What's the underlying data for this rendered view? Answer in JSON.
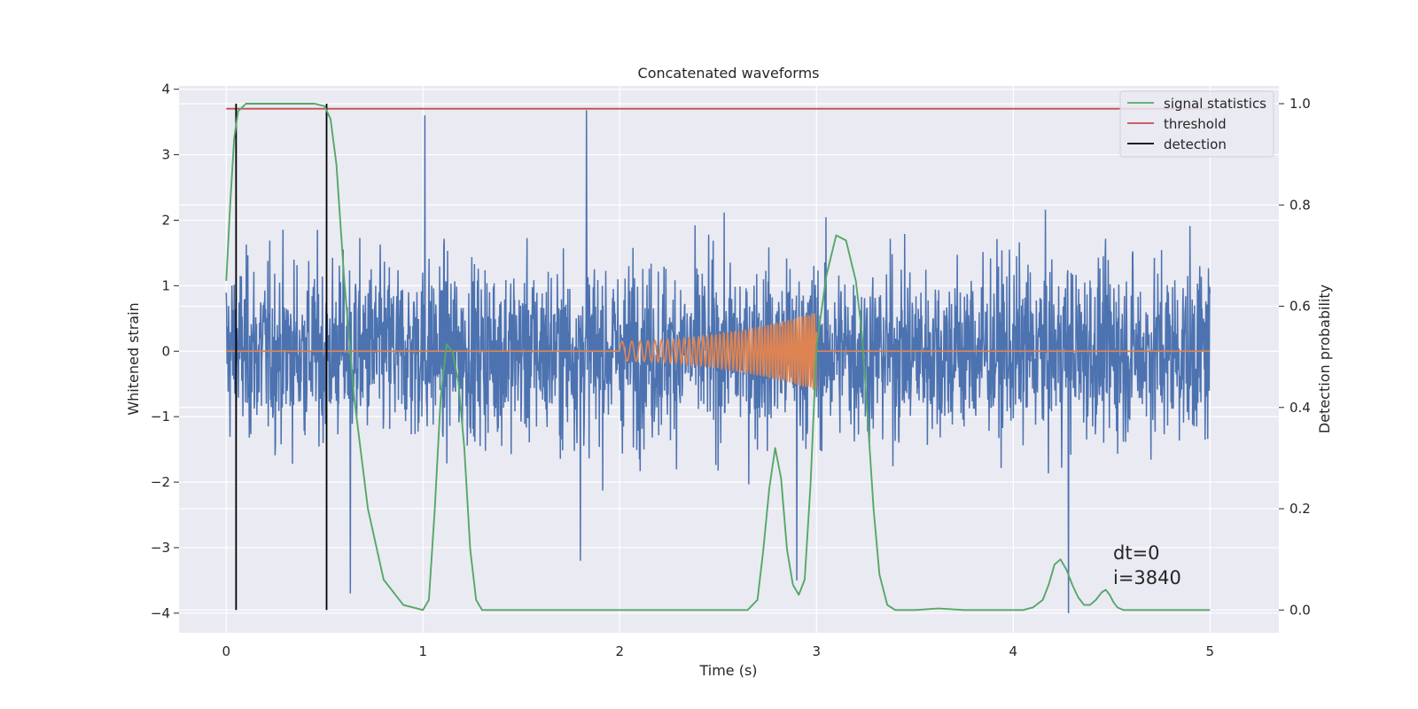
{
  "chart_data": {
    "type": "line",
    "title": "Concatenated waveforms",
    "xlabel": "Time (s)",
    "ylabel_left": "Whitened strain",
    "ylabel_right": "Detection probability",
    "xlim": [
      -0.24,
      5.35
    ],
    "ylim_left": [
      -4.3,
      4.05
    ],
    "ylim_right": [
      -0.045,
      1.035
    ],
    "x_ticks": [
      0,
      1,
      2,
      3,
      4,
      5
    ],
    "x_tick_labels": [
      "0",
      "1",
      "2",
      "3",
      "4",
      "5"
    ],
    "y_left_ticks": [
      -4,
      -3,
      -2,
      -1,
      0,
      1,
      2,
      3,
      4
    ],
    "y_left_tick_labels": [
      "−4",
      "−3",
      "−2",
      "−1",
      "0",
      "1",
      "2",
      "3",
      "4"
    ],
    "y_right_ticks": [
      0.0,
      0.2,
      0.4,
      0.6,
      0.8,
      1.0
    ],
    "y_right_tick_labels": [
      "0.0",
      "0.2",
      "0.4",
      "0.6",
      "0.8",
      "1.0"
    ],
    "grid": true,
    "legend_position": "top-right",
    "legend": [
      {
        "label": "signal statistics",
        "color": "#55a868"
      },
      {
        "label": "threshold",
        "color": "#c44e52"
      },
      {
        "label": "detection",
        "color": "#000000"
      }
    ],
    "series": [
      {
        "name": "whitened strain noise",
        "axis": "left",
        "color": "#4c72b0",
        "x_range": [
          0,
          5
        ],
        "typical_envelope": [
          -2.0,
          2.0
        ],
        "peaks": [
          {
            "x": 1.01,
            "y": 3.6
          },
          {
            "x": 1.83,
            "y": 3.68
          },
          {
            "x": 4.28,
            "y": -4.0
          },
          {
            "x": 0.63,
            "y": -3.7
          },
          {
            "x": 2.9,
            "y": -3.5
          },
          {
            "x": 1.8,
            "y": -3.2
          }
        ]
      },
      {
        "name": "injected chirp",
        "axis": "left",
        "color": "#dd8452",
        "x_range": [
          0,
          5
        ],
        "chirp_start": 2.0,
        "chirp_end": 3.0,
        "amplitude_start": 0.15,
        "amplitude_end": 0.6,
        "frequency_start": 18,
        "frequency_end": 80
      },
      {
        "name": "signal statistics",
        "axis": "right",
        "color": "#55a868",
        "x": [
          0,
          0.02,
          0.04,
          0.06,
          0.1,
          0.15,
          0.3,
          0.45,
          0.5,
          0.53,
          0.56,
          0.6,
          0.65,
          0.72,
          0.8,
          0.9,
          1.0,
          1.03,
          1.06,
          1.09,
          1.12,
          1.15,
          1.18,
          1.21,
          1.24,
          1.27,
          1.3,
          1.4,
          2.0,
          2.65,
          2.7,
          2.73,
          2.76,
          2.79,
          2.82,
          2.85,
          2.88,
          2.91,
          2.94,
          2.97,
          3.0,
          3.05,
          3.1,
          3.15,
          3.2,
          3.23,
          3.26,
          3.29,
          3.32,
          3.36,
          3.4,
          3.5,
          3.62,
          3.75,
          4.05,
          4.1,
          4.15,
          4.18,
          4.21,
          4.24,
          4.27,
          4.3,
          4.33,
          4.36,
          4.39,
          4.42,
          4.45,
          4.47,
          4.49,
          4.51,
          4.53,
          4.56,
          4.6,
          5.0
        ],
        "y": [
          0.65,
          0.8,
          0.93,
          0.985,
          1.0,
          1.0,
          1.0,
          1.0,
          0.995,
          0.97,
          0.88,
          0.65,
          0.42,
          0.2,
          0.06,
          0.01,
          0.0,
          0.02,
          0.2,
          0.42,
          0.525,
          0.51,
          0.45,
          0.32,
          0.12,
          0.02,
          0.0,
          0.0,
          0.0,
          0.0,
          0.02,
          0.12,
          0.24,
          0.32,
          0.26,
          0.12,
          0.05,
          0.03,
          0.06,
          0.25,
          0.52,
          0.66,
          0.74,
          0.73,
          0.65,
          0.55,
          0.38,
          0.2,
          0.07,
          0.01,
          0.0,
          0.0,
          0.003,
          0.0,
          0.0,
          0.005,
          0.02,
          0.05,
          0.09,
          0.1,
          0.08,
          0.05,
          0.025,
          0.01,
          0.01,
          0.02,
          0.035,
          0.04,
          0.03,
          0.015,
          0.005,
          0.0,
          0.0,
          0.0
        ]
      },
      {
        "name": "threshold",
        "axis": "right",
        "color": "#c44e52",
        "x": [
          0,
          5
        ],
        "y": [
          0.99,
          0.99
        ]
      }
    ],
    "detections": [
      0.05,
      0.51
    ],
    "detection_range_right": [
      0.0,
      1.0
    ],
    "annotations": [
      "dt=0",
      "i=3840"
    ]
  }
}
